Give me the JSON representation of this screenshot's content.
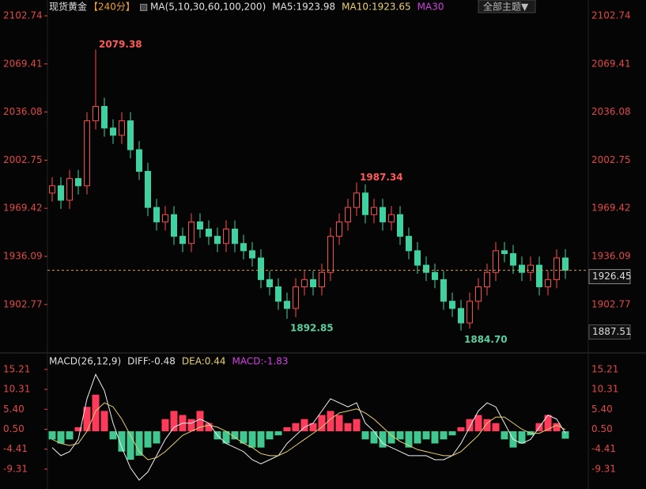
{
  "chart_data": [
    {
      "type": "candlestick",
      "title": "现货黄金",
      "period": "【240分】",
      "legend": [
        "MA(5,10,30,60,100,200)",
        "MA5:1923.98",
        "MA10:1923.65",
        "MA30"
      ],
      "legend_colors": [
        "#e0e0e0",
        "#e0e0e0",
        "#e8d070",
        "#d040e0"
      ],
      "button": "全部主题▼",
      "up_color": "#ff4a4a",
      "down_color": "#3fd2a0",
      "open": [
        1980,
        1985,
        1975,
        1990,
        1985,
        2030,
        2040,
        2025,
        2020,
        2030,
        2010,
        1995,
        1970,
        1960,
        1965,
        1950,
        1945,
        1960,
        1955,
        1950,
        1945,
        1955,
        1945,
        1940,
        1935,
        1920,
        1915,
        1905,
        1900,
        1915,
        1920,
        1915,
        1925,
        1950,
        1960,
        1970,
        1980,
        1965,
        1970,
        1960,
        1965,
        1950,
        1940,
        1930,
        1925,
        1920,
        1905,
        1900,
        1890,
        1905,
        1915,
        1925,
        1940,
        1938,
        1930,
        1925,
        1930,
        1915,
        1920,
        1935
      ],
      "high": [
        1991,
        1991,
        1996,
        1996,
        2036,
        2079.38,
        2046,
        2031,
        2036,
        2036,
        2016,
        2001,
        1976,
        1971,
        1971,
        1956,
        1966,
        1966,
        1961,
        1956,
        1961,
        1961,
        1951,
        1946,
        1941,
        1926,
        1921,
        1911,
        1921,
        1926,
        1926,
        1931,
        1956,
        1966,
        1976,
        1987.34,
        1986,
        1976,
        1976,
        1971,
        1971,
        1956,
        1946,
        1936,
        1931,
        1926,
        1911,
        1906,
        1911,
        1921,
        1931,
        1946,
        1946,
        1944,
        1936,
        1936,
        1936,
        1926,
        1941,
        1941
      ],
      "low": [
        1974,
        1969,
        1969,
        1979,
        1979,
        2024,
        2019,
        2014,
        2014,
        2004,
        1989,
        1964,
        1954,
        1954,
        1944,
        1939,
        1939,
        1949,
        1944,
        1939,
        1939,
        1939,
        1934,
        1929,
        1914,
        1909,
        1899,
        1892.85,
        1894,
        1909,
        1909,
        1909,
        1919,
        1944,
        1954,
        1964,
        1959,
        1959,
        1954,
        1954,
        1944,
        1934,
        1924,
        1919,
        1914,
        1899,
        1894,
        1884.7,
        1886,
        1899,
        1909,
        1919,
        1932,
        1924,
        1919,
        1919,
        1909,
        1909,
        1914,
        1920.45
      ],
      "close": [
        1985,
        1975,
        1990,
        1985,
        2030,
        2040,
        2025,
        2020,
        2030,
        2010,
        1995,
        1970,
        1960,
        1965,
        1950,
        1945,
        1960,
        1955,
        1950,
        1945,
        1955,
        1945,
        1940,
        1935,
        1920,
        1915,
        1905,
        1900,
        1915,
        1920,
        1915,
        1925,
        1950,
        1960,
        1970,
        1980,
        1965,
        1970,
        1960,
        1965,
        1950,
        1940,
        1930,
        1925,
        1920,
        1905,
        1900,
        1890,
        1905,
        1915,
        1925,
        1940,
        1938,
        1930,
        1925,
        1930,
        1915,
        1920,
        1935,
        1926.45
      ],
      "annotations": [
        {
          "value": 2079.38,
          "label": "2079.38",
          "color": "#ff5a5a"
        },
        {
          "value": 1892.85,
          "label": "1892.85",
          "color": "#5ad0a0"
        },
        {
          "value": 1987.34,
          "label": "1987.34",
          "color": "#ff5a5a"
        },
        {
          "value": 1884.7,
          "label": "1884.70",
          "color": "#5ad0a0"
        }
      ],
      "last_price": 1926.45,
      "bottom_label": 1887.51,
      "ylim": [
        1872.5,
        2102.74
      ],
      "yticks": [
        2102.74,
        2069.41,
        2036.08,
        2002.75,
        1969.42,
        1936.09,
        1902.77
      ]
    },
    {
      "type": "macd",
      "legend": [
        "MACD(26,12,9)",
        "DIFF:-0.48",
        "DEA:0.44",
        "MACD:-1.83"
      ],
      "legend_colors": [
        "#e0e0e0",
        "#e0e0e0",
        "#e8d070",
        "#d040e0"
      ],
      "up_color": "#ff3a5a",
      "down_color": "#40c890",
      "hist": [
        -2,
        -3,
        -2,
        1,
        6,
        9,
        5,
        -2,
        -5,
        -7,
        -6,
        -4,
        -3,
        3,
        5,
        4,
        3,
        5,
        2,
        -2,
        -3,
        -2,
        -3,
        -4,
        -4,
        -2,
        -1,
        1,
        2,
        3,
        2,
        4,
        5,
        4,
        2,
        3,
        -2,
        -3,
        -4,
        -3,
        -2,
        -4,
        -3,
        -2,
        -3,
        -2,
        -1,
        1,
        3,
        4,
        3,
        2,
        -2,
        -4,
        -3,
        -1,
        2,
        4,
        2,
        -1.83
      ],
      "series": [
        {
          "name": "DIFF",
          "color": "#f0f0f0",
          "values": [
            -4,
            -6,
            -5,
            -2,
            8,
            14,
            10,
            2,
            -4,
            -9,
            -12,
            -10,
            -6,
            -2,
            1,
            2,
            2,
            3,
            2,
            -1,
            -3,
            -4,
            -5,
            -7,
            -8,
            -7,
            -6,
            -3,
            -1,
            1,
            2,
            5,
            8,
            7,
            6,
            7,
            2,
            0,
            -3,
            -4,
            -5,
            -6,
            -6,
            -6,
            -7,
            -7,
            -6,
            -3,
            1,
            5,
            7,
            6,
            2,
            -2,
            -3,
            -2,
            1,
            4,
            3,
            -0.48
          ]
        },
        {
          "name": "DEA",
          "color": "#e8d070",
          "values": [
            -2,
            -3,
            -3.5,
            -3,
            0,
            5,
            7,
            6,
            3,
            -1,
            -5,
            -7,
            -6.5,
            -5,
            -3,
            -1,
            0,
            1,
            1.5,
            1,
            0,
            -1.5,
            -3,
            -4,
            -5.5,
            -6,
            -6,
            -5,
            -3.5,
            -2,
            -0.5,
            1,
            3,
            4.5,
            5,
            5.5,
            4.5,
            3,
            1,
            -1,
            -2.5,
            -3.5,
            -4.5,
            -5,
            -5.5,
            -6,
            -6,
            -5,
            -3,
            -1,
            2,
            3.5,
            3.5,
            2,
            0.5,
            -0.5,
            -0.5,
            0.5,
            1.5,
            0.44
          ]
        }
      ],
      "ylim": [
        -14.2,
        18.5
      ],
      "yticks": [
        15.21,
        10.31,
        {
          "value": 5.4,
          "label": "5.40"
        },
        {
          "value": 0.5,
          "label": "0.50"
        },
        -4.41,
        -9.31
      ]
    }
  ]
}
